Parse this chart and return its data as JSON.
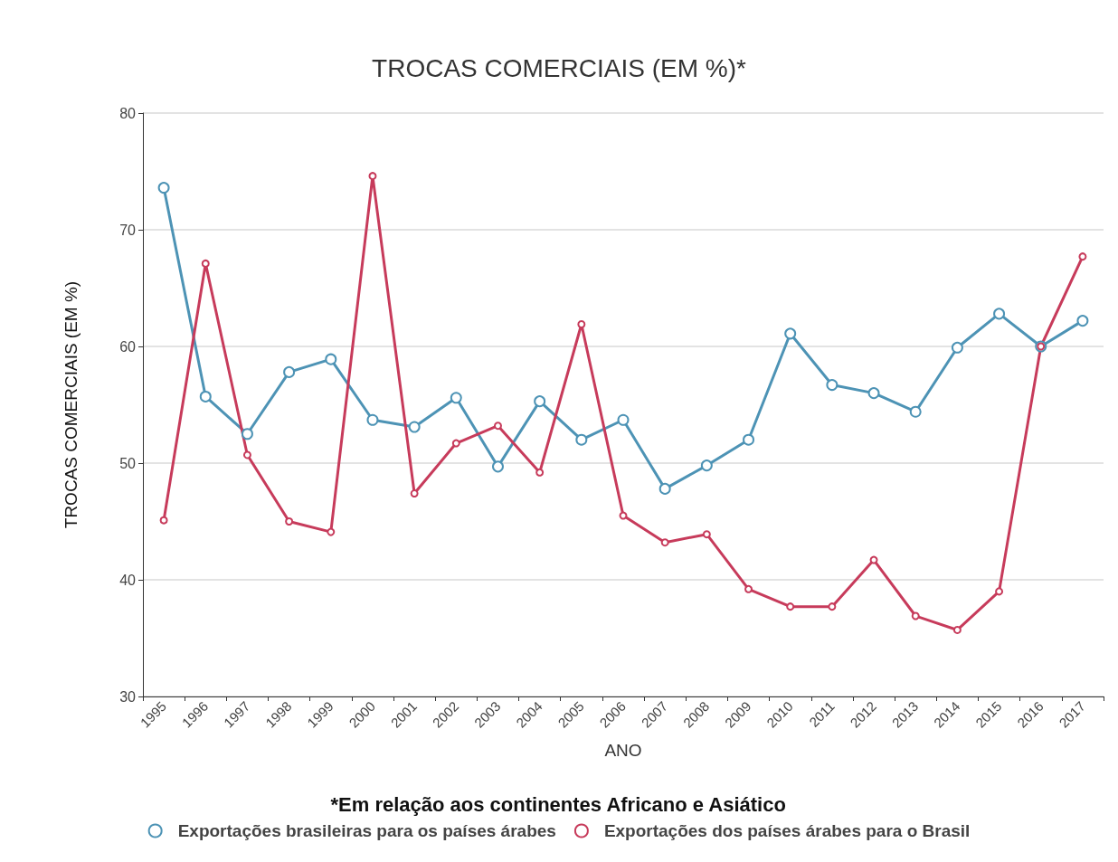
{
  "chart_data": {
    "type": "line",
    "title": "TROCAS COMERCIAIS (EM %)*",
    "xlabel": "ANO",
    "ylabel": "TROCAS COMERCIAIS (EM %)",
    "annotations": [
      "*Em relação aos continentes Africano e Asiático"
    ],
    "categories": [
      "1995",
      "1996",
      "1997",
      "1998",
      "1999",
      "2000",
      "2001",
      "2002",
      "2003",
      "2004",
      "2005",
      "2006",
      "2007",
      "2008",
      "2009",
      "2010",
      "2011",
      "2012",
      "2013",
      "2014",
      "2015",
      "2016",
      "2017"
    ],
    "series": [
      {
        "name": "Exportações brasileiras para os países árabes",
        "color": "#4d93b5",
        "values": [
          73.6,
          55.7,
          52.5,
          57.8,
          58.9,
          53.7,
          53.1,
          55.6,
          49.7,
          55.3,
          52.0,
          53.7,
          47.8,
          49.8,
          52.0,
          61.1,
          56.7,
          56.0,
          54.4,
          59.9,
          62.8,
          60.0,
          62.2
        ]
      },
      {
        "name": "Exportações dos países árabes para o Brasil",
        "color": "#c73b5b",
        "values": [
          45.1,
          67.1,
          50.7,
          45.0,
          44.1,
          74.6,
          47.4,
          51.7,
          53.2,
          49.2,
          61.9,
          45.5,
          43.2,
          43.9,
          39.2,
          37.7,
          37.7,
          41.7,
          36.9,
          35.7,
          39.0,
          60.0,
          67.7
        ]
      }
    ],
    "ylim": [
      30,
      80
    ],
    "yticks": [
      30,
      40,
      50,
      60,
      70,
      80
    ],
    "grid": "y",
    "legend": "bottom",
    "marker": "circle",
    "line_style": "solid"
  }
}
